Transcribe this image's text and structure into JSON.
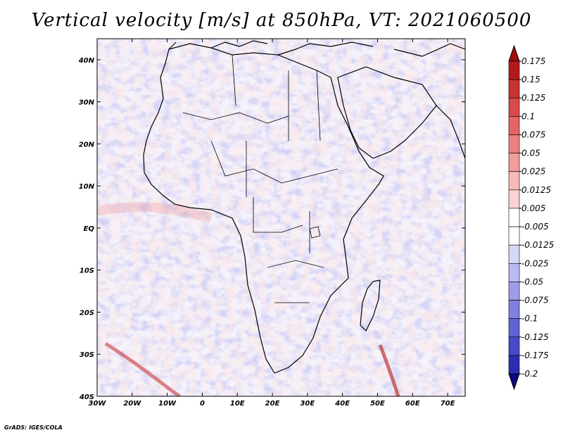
{
  "title": "Vertical velocity [m/s] at 850hPa, VT: 2021060500",
  "credit": "GrADS: IGES/COLA",
  "map": {
    "lat_labels": [
      "40N",
      "30N",
      "20N",
      "10N",
      "EQ",
      "10S",
      "20S",
      "30S",
      "40S"
    ],
    "lat_values": [
      40,
      30,
      20,
      10,
      0,
      -10,
      -20,
      -30,
      -40
    ],
    "lon_labels": [
      "30W",
      "20W",
      "10W",
      "0",
      "10E",
      "20E",
      "30E",
      "40E",
      "50E",
      "60E",
      "70E"
    ],
    "lon_values": [
      -30,
      -20,
      -10,
      0,
      10,
      20,
      30,
      40,
      50,
      60,
      70
    ],
    "lon_range": [
      -30,
      75
    ],
    "lat_range": [
      -40,
      45
    ]
  },
  "colorbar": {
    "labels": [
      "0.175",
      "0.15",
      "0.125",
      "0.1",
      "0.075",
      "0.05",
      "0.025",
      "0.0125",
      "0.005",
      "-0.005",
      "-0.0125",
      "-0.025",
      "-0.05",
      "-0.075",
      "-0.1",
      "-0.125",
      "-0.175",
      "-0.2"
    ],
    "colors": [
      "#b21a1a",
      "#c83232",
      "#d94a4a",
      "#e56464",
      "#ec8080",
      "#f29c9c",
      "#f6b8b8",
      "#fad2d2",
      "#ffffff",
      "#ffffff",
      "#d6d6f6",
      "#babaf0",
      "#9c9ce8",
      "#8080e0",
      "#6262d6",
      "#4848c8",
      "#2c2cb4",
      "#161690"
    ],
    "top_color": "#9e0c0c",
    "bottom_color": "#0a0a82"
  }
}
